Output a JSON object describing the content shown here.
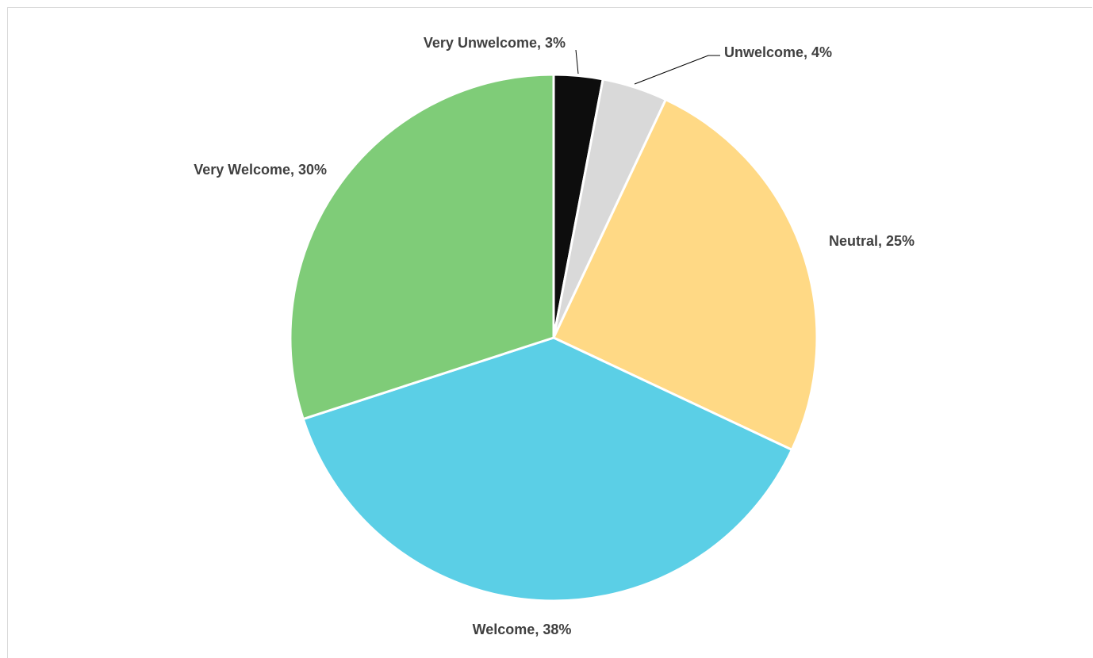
{
  "chart_data": {
    "type": "pie",
    "title": "",
    "start_angle_deg": 0,
    "direction": "clockwise",
    "slices": [
      {
        "label": "Very Unwelcome",
        "value": 3,
        "display": "Very Unwelcome, 3%",
        "color": "#0d0d0d"
      },
      {
        "label": "Unwelcome",
        "value": 4,
        "display": "Unwelcome, 4%",
        "color": "#d9d9d9"
      },
      {
        "label": "Neutral",
        "value": 25,
        "display": "Neutral, 25%",
        "color": "#ffd985"
      },
      {
        "label": "Welcome",
        "value": 38,
        "display": "Welcome, 38%",
        "color": "#5bcfe6"
      },
      {
        "label": "Very Welcome",
        "value": 30,
        "display": "Very Welcome, 30%",
        "color": "#7fcc78"
      }
    ],
    "slice_border_color": "#ffffff",
    "label_color": "#404040",
    "leader_line_color": "#000000"
  }
}
